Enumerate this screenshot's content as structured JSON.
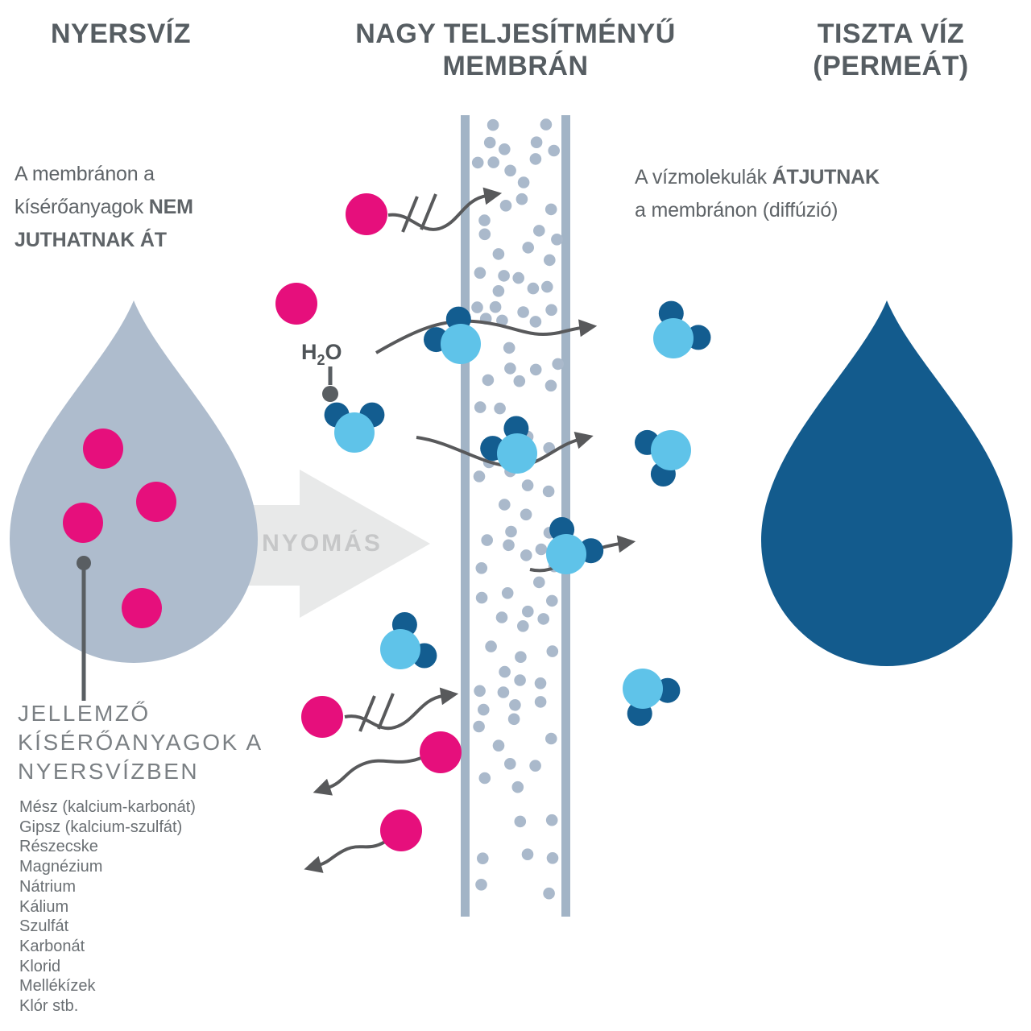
{
  "titles": {
    "left": "NYERSVÍZ",
    "middle_lines": [
      "NAGY TELJESÍTMÉNYŰ",
      "MEMBRÁN"
    ],
    "right_lines": [
      "TISZTA VÍZ",
      "(PERMEÁT)"
    ]
  },
  "notes": {
    "left_lines": [
      [
        {
          "t": "A membránon a",
          "b": false
        }
      ],
      [
        {
          "t": "kísérőanyagok ",
          "b": false
        },
        {
          "t": "NEM",
          "b": true
        }
      ],
      [
        {
          "t": "JUTHATNAK ÁT",
          "b": true
        }
      ]
    ],
    "right_lines": [
      [
        {
          "t": "A vízmolekulák ",
          "b": false
        },
        {
          "t": "ÁTJUTNAK",
          "b": true
        }
      ],
      [
        {
          "t": "a membránon (diffúzió)",
          "b": false
        }
      ]
    ]
  },
  "pressure_label": "NYOMÁS",
  "h2o_label": {
    "base": "H",
    "sub": "2",
    "tail": "O"
  },
  "contaminants": {
    "heading_lines": [
      "JELLEMZŐ",
      "KÍSÉRŐANYAGOK A",
      "NYERSVÍZBEN"
    ],
    "items": [
      "Mész (kalcium-karbonát)",
      "Gipsz (kalcium-szulfát)",
      "Részecske",
      "Magnézium",
      "Nátrium",
      "Kálium",
      "Szulfát",
      "Karbonát",
      "Klorid",
      "Mellékízek",
      "Klór stb."
    ]
  },
  "colors": {
    "heading": "#565d62",
    "body": "#5f6468",
    "muted_heading": "#7b8084",
    "list_text": "#6a6f73",
    "pink": "#e60f7c",
    "raw_drop": "#aebccd",
    "clean_drop": "#135b8d",
    "membrane_bar": "#a2b4c6",
    "membrane_dot": "#aab9cb",
    "mol_light": "#5fc3e9",
    "mol_dark": "#135d90",
    "arrow": "#58595b",
    "pressure_fill": "#e8e9e9",
    "pressure_text": "#c6c7c8",
    "h2o_text": "#4f5458",
    "leader": "#595e62"
  },
  "membrane_pores": {
    "count": 96,
    "radius": 7.3
  }
}
